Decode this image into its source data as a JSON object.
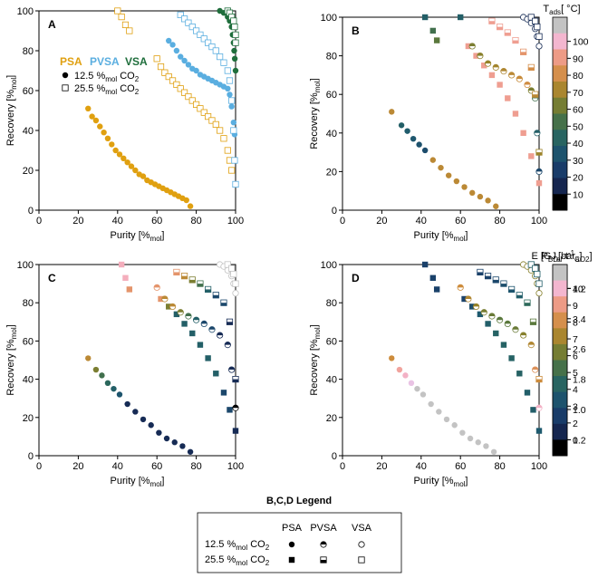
{
  "figure": {
    "legend_title": "B,C,D Legend",
    "legend_headers": [
      "PSA",
      "PVSA",
      "VSA"
    ],
    "legend_rows": [
      {
        "pre": "12.5 %",
        "sub": "mol",
        "post": " CO",
        "sub2": "2"
      },
      {
        "pre": "25.5 %",
        "sub": "mol",
        "post": " CO",
        "sub2": "2"
      }
    ]
  },
  "colors": {
    "psa": "#e0a010",
    "pvsa": "#5aaee0",
    "vsa": "#1f6e3c",
    "axis": "#000000"
  },
  "panel_A_legend": {
    "psa": "PSA",
    "pvsa": "PVSA",
    "vsa": "VSA",
    "row1": {
      "pre": "12.5 %",
      "sub": "mol",
      "post": " CO",
      "sub2": "2"
    },
    "row2": {
      "pre": "25.5 %",
      "sub": "mol",
      "post": " CO",
      "sub2": "2"
    }
  },
  "colorbars": [
    {
      "panel": "B",
      "label_main": "T",
      "label_sub": "ads",
      "label_post": "[ °C]",
      "ticks": [
        "10",
        "20",
        "30",
        "40",
        "50",
        "60",
        "70",
        "80",
        "90",
        "100"
      ]
    },
    {
      "panel": "C",
      "label_main": "P",
      "label_sub": "BD",
      "label_post": "[bar",
      "label_sub2": "a",
      "label_end": "]",
      "ticks": [
        "1",
        "2",
        "3",
        "4",
        "5",
        "6",
        "7",
        "8",
        "9",
        "10"
      ]
    },
    {
      "panel": "D",
      "label_main": "E [GJ",
      "label_sub": "el",
      "label_post": "·t",
      "label_sup": "-1",
      "label_sub2": "CO2",
      "label_end": "]",
      "ticks": [
        "0.2",
        "1.0",
        "1.8",
        "2.6",
        "3.4",
        "4.2"
      ]
    }
  ],
  "chart_data": [
    {
      "panel": "A",
      "type": "scatter",
      "xlabel": "Purity [%mol]",
      "ylabel": "Recovery [%mol]",
      "xlim": [
        0,
        100
      ],
      "ylim": [
        0,
        100
      ],
      "xticks": [
        0,
        20,
        40,
        60,
        80,
        100
      ],
      "yticks": [
        0,
        20,
        40,
        60,
        80,
        100
      ],
      "series": [
        {
          "name": "PSA 12.5% CO2",
          "marker": "circle-filled",
          "color": "psa",
          "x": [
            25,
            27,
            29,
            31,
            33,
            35,
            37,
            39,
            41,
            43,
            45,
            47,
            49,
            51,
            53,
            55,
            57,
            59,
            61,
            63,
            65,
            67,
            69,
            71,
            73,
            75,
            77
          ],
          "y": [
            51,
            47,
            45,
            42,
            39,
            36,
            33,
            30,
            28,
            26,
            24,
            22,
            20,
            18,
            17,
            15,
            14,
            13,
            12,
            11,
            10,
            9,
            8,
            7,
            6,
            5,
            2
          ]
        },
        {
          "name": "PSA 25.5% CO2",
          "marker": "square-open",
          "color": "psa",
          "x": [
            40,
            42,
            44,
            46,
            60,
            62,
            64,
            66,
            68,
            70,
            72,
            74,
            76,
            78,
            80,
            82,
            84,
            86,
            88,
            90,
            92,
            94,
            96,
            97,
            98
          ],
          "y": [
            100,
            97,
            93,
            90,
            76,
            72,
            69,
            67,
            65,
            63,
            61,
            59,
            57,
            55,
            53,
            51,
            49,
            47,
            45,
            43,
            40,
            36,
            30,
            25,
            20
          ]
        },
        {
          "name": "PVSA 12.5% CO2",
          "marker": "circle-filled",
          "color": "pvsa",
          "x": [
            66,
            68,
            70,
            72,
            74,
            76,
            78,
            80,
            82,
            84,
            86,
            88,
            90,
            92,
            94,
            96,
            97,
            98,
            99,
            99.5
          ],
          "y": [
            85,
            83,
            80,
            77,
            75,
            73,
            71,
            70,
            68,
            67,
            66,
            65,
            64,
            63,
            62,
            61,
            58,
            52,
            44,
            38
          ]
        },
        {
          "name": "PVSA 25.5% CO2",
          "marker": "square-open",
          "color": "pvsa",
          "x": [
            72,
            74,
            76,
            78,
            80,
            82,
            84,
            86,
            88,
            90,
            92,
            94,
            96,
            97,
            98,
            99,
            99.5,
            100
          ],
          "y": [
            98,
            96,
            94,
            92,
            90,
            88,
            86,
            84,
            82,
            80,
            77,
            74,
            70,
            65,
            55,
            40,
            25,
            13
          ]
        },
        {
          "name": "VSA 12.5% CO2",
          "marker": "circle-filled",
          "color": "vsa",
          "x": [
            92,
            94,
            96,
            97,
            98,
            98.5,
            99,
            99.3,
            99.6,
            100
          ],
          "y": [
            100,
            99,
            97,
            95,
            92,
            88,
            84,
            80,
            76,
            70
          ]
        },
        {
          "name": "VSA 25.5% CO2",
          "marker": "square-open",
          "color": "vsa",
          "x": [
            96,
            97,
            98,
            99,
            99.5,
            100,
            100
          ],
          "y": [
            100,
            99,
            97,
            95,
            92,
            88,
            84
          ]
        }
      ]
    },
    {
      "panel": "B",
      "type": "scatter",
      "xlabel": "Purity [%mol]",
      "ylabel": "Recovery [%mol]",
      "xlim": [
        0,
        100
      ],
      "ylim": [
        0,
        100
      ],
      "xticks": [
        0,
        20,
        40,
        60,
        80,
        100
      ],
      "yticks": [
        0,
        20,
        40,
        60,
        80,
        100
      ],
      "colorbar_range": [
        10,
        100
      ],
      "series": [
        {
          "name": "PSA 12.5% CO2",
          "marker": "circle-filled",
          "x": [
            25,
            30,
            33,
            36,
            39,
            42,
            46,
            50,
            54,
            58,
            62,
            66,
            70,
            74,
            78
          ],
          "y": [
            51,
            44,
            41,
            37,
            34,
            31,
            26,
            22,
            18,
            15,
            12,
            9,
            7,
            5,
            2
          ],
          "c": [
            70,
            40,
            38,
            36,
            34,
            32,
            70,
            70,
            70,
            70,
            70,
            70,
            70,
            70,
            70
          ]
        },
        {
          "name": "PSA 25.5% CO2",
          "marker": "square-filled",
          "x": [
            42,
            46,
            48,
            60,
            64,
            68,
            72,
            76,
            80,
            84,
            88,
            92,
            96,
            100
          ],
          "y": [
            100,
            93,
            88,
            100,
            85,
            80,
            75,
            70,
            65,
            58,
            50,
            40,
            28,
            14
          ],
          "c": [
            40,
            50,
            55,
            40,
            85,
            85,
            85,
            85,
            85,
            85,
            85,
            85,
            85,
            85
          ]
        },
        {
          "name": "PVSA 12.5% CO2",
          "marker": "circle-half",
          "x": [
            66,
            70,
            74,
            78,
            82,
            86,
            90,
            94,
            96,
            98,
            99,
            100
          ],
          "y": [
            85,
            80,
            76,
            74,
            72,
            70,
            68,
            65,
            62,
            58,
            40,
            20
          ],
          "c": [
            60,
            62,
            64,
            66,
            68,
            70,
            72,
            74,
            60,
            50,
            40,
            30
          ]
        },
        {
          "name": "PVSA 25.5% CO2",
          "marker": "square-half",
          "x": [
            76,
            80,
            84,
            88,
            92,
            96,
            98,
            100
          ],
          "y": [
            98,
            95,
            92,
            88,
            82,
            74,
            60,
            30
          ],
          "c": [
            85,
            85,
            85,
            85,
            80,
            75,
            70,
            65
          ]
        },
        {
          "name": "VSA 12.5% CO2",
          "marker": "circle-open",
          "x": [
            92,
            94,
            96,
            98,
            99,
            100
          ],
          "y": [
            100,
            99,
            97,
            94,
            90,
            85
          ],
          "c": [
            20,
            20,
            20,
            20,
            20,
            20
          ]
        },
        {
          "name": "VSA 25.5% CO2",
          "marker": "square-open",
          "x": [
            96,
            98,
            99,
            100
          ],
          "y": [
            100,
            98,
            95,
            90
          ],
          "c": [
            20,
            20,
            20,
            20
          ]
        }
      ]
    },
    {
      "panel": "C",
      "type": "scatter",
      "xlabel": "Purity [%mol]",
      "ylabel": "Recovery [%mol]",
      "xlim": [
        0,
        100
      ],
      "ylim": [
        0,
        100
      ],
      "xticks": [
        0,
        20,
        40,
        60,
        80,
        100
      ],
      "yticks": [
        0,
        20,
        40,
        60,
        80,
        100
      ],
      "colorbar_range": [
        1,
        10
      ],
      "series": [
        {
          "name": "PSA 12.5% CO2",
          "marker": "circle-filled",
          "x": [
            25,
            29,
            32,
            35,
            38,
            41,
            45,
            49,
            53,
            57,
            61,
            65,
            69,
            73,
            77
          ],
          "y": [
            51,
            45,
            42,
            38,
            35,
            32,
            27,
            23,
            19,
            16,
            12,
            9,
            7,
            5,
            2
          ],
          "c": [
            7,
            6,
            5,
            4.5,
            4,
            3.5,
            2,
            2,
            2,
            2,
            2,
            2,
            2,
            2,
            2
          ]
        },
        {
          "name": "PSA 25.5% CO2",
          "marker": "square-filled",
          "x": [
            42,
            44,
            46,
            62,
            66,
            70,
            74,
            78,
            82,
            86,
            90,
            94,
            97,
            100
          ],
          "y": [
            100,
            93,
            87,
            82,
            78,
            74,
            69,
            64,
            58,
            51,
            43,
            33,
            24,
            13
          ],
          "c": [
            9,
            9,
            8,
            8,
            6,
            4,
            4,
            4,
            4,
            4,
            4,
            3,
            3,
            2
          ]
        },
        {
          "name": "PVSA 12.5% CO2",
          "marker": "circle-half",
          "x": [
            60,
            64,
            68,
            72,
            76,
            80,
            84,
            88,
            92,
            96,
            98,
            100
          ],
          "y": [
            88,
            82,
            78,
            75,
            73,
            71,
            69,
            66,
            63,
            58,
            45,
            25
          ],
          "c": [
            8,
            7,
            7,
            6,
            5,
            4,
            3,
            3,
            2,
            2,
            2,
            1
          ]
        },
        {
          "name": "PVSA 25.5% CO2",
          "marker": "square-half",
          "x": [
            70,
            74,
            78,
            82,
            86,
            90,
            94,
            97,
            100
          ],
          "y": [
            96,
            94,
            92,
            90,
            87,
            84,
            80,
            70,
            40
          ],
          "c": [
            8,
            7,
            6,
            5,
            4,
            3,
            3,
            2,
            2
          ]
        },
        {
          "name": "VSA 12.5% CO2",
          "marker": "circle-open",
          "x": [
            92,
            94,
            96,
            98,
            99,
            100
          ],
          "y": [
            100,
            99,
            97,
            94,
            90,
            85
          ],
          "c": [
            10,
            10,
            10,
            10,
            10,
            10
          ]
        },
        {
          "name": "VSA 25.5% CO2",
          "marker": "square-open",
          "x": [
            96,
            98,
            99,
            100
          ],
          "y": [
            100,
            98,
            95,
            90
          ],
          "c": [
            10,
            10,
            10,
            10
          ]
        }
      ]
    },
    {
      "panel": "D",
      "type": "scatter",
      "xlabel": "Purity [%mol]",
      "ylabel": "Recovery [%mol]",
      "xlim": [
        0,
        100
      ],
      "ylim": [
        0,
        100
      ],
      "xticks": [
        0,
        20,
        40,
        60,
        80,
        100
      ],
      "yticks": [
        0,
        20,
        40,
        60,
        80,
        100
      ],
      "colorbar_range": [
        0.2,
        4.2
      ],
      "series": [
        {
          "name": "PSA 12.5% CO2",
          "marker": "circle-filled",
          "x": [
            25,
            29,
            32,
            35,
            38,
            41,
            45,
            49,
            53,
            57,
            61,
            65,
            69,
            73,
            77
          ],
          "y": [
            51,
            45,
            42,
            38,
            35,
            32,
            27,
            23,
            19,
            16,
            12,
            9,
            7,
            5,
            2
          ],
          "c": [
            3.0,
            3.6,
            3.8,
            4.0,
            4.2,
            4.4,
            4.5,
            4.5,
            4.5,
            4.5,
            4.5,
            4.5,
            4.5,
            4.5,
            4.5
          ]
        },
        {
          "name": "PSA 25.5% CO2",
          "marker": "square-filled",
          "x": [
            42,
            46,
            48,
            62,
            66,
            70,
            74,
            78,
            82,
            86,
            90,
            94,
            97,
            100
          ],
          "y": [
            100,
            93,
            87,
            82,
            78,
            74,
            69,
            64,
            58,
            51,
            43,
            33,
            24,
            13
          ],
          "c": [
            1.0,
            1.0,
            1.0,
            1.0,
            1.2,
            1.4,
            1.5,
            1.6,
            1.6,
            1.6,
            1.6,
            1.5,
            1.5,
            1.4
          ]
        },
        {
          "name": "PVSA 12.5% CO2",
          "marker": "circle-half",
          "x": [
            60,
            64,
            68,
            72,
            76,
            80,
            84,
            88,
            92,
            96,
            98,
            100
          ],
          "y": [
            88,
            82,
            78,
            75,
            73,
            71,
            69,
            66,
            63,
            58,
            45,
            25
          ],
          "c": [
            3.0,
            2.8,
            2.6,
            2.4,
            2.3,
            2.2,
            2.2,
            2.3,
            2.5,
            2.8,
            3.2,
            3.8
          ]
        },
        {
          "name": "PVSA 25.5% CO2",
          "marker": "square-half",
          "x": [
            70,
            74,
            78,
            82,
            86,
            90,
            94,
            97,
            100
          ],
          "y": [
            96,
            94,
            92,
            90,
            87,
            84,
            80,
            70,
            40
          ],
          "c": [
            1.0,
            1.0,
            1.1,
            1.2,
            1.3,
            1.5,
            1.8,
            2.2,
            3.0
          ]
        },
        {
          "name": "VSA 12.5% CO2",
          "marker": "circle-open",
          "x": [
            92,
            94,
            96,
            98,
            99,
            100
          ],
          "y": [
            100,
            99,
            97,
            94,
            90,
            85
          ],
          "c": [
            2.5,
            2.5,
            2.5,
            2.5,
            2.5,
            2.5
          ]
        },
        {
          "name": "VSA 25.5% CO2",
          "marker": "square-open",
          "x": [
            96,
            98,
            99,
            100
          ],
          "y": [
            100,
            98,
            95,
            90
          ],
          "c": [
            1.5,
            1.5,
            1.5,
            1.5
          ]
        }
      ]
    }
  ]
}
